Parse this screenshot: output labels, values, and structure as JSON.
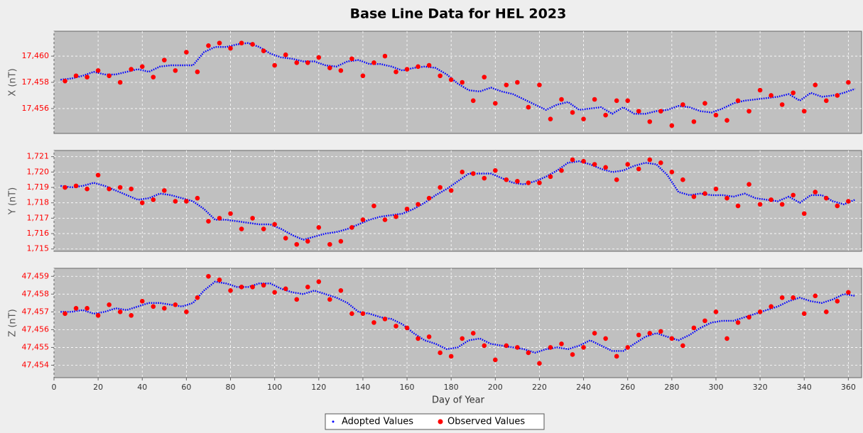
{
  "chart_data": {
    "type": "scatter",
    "title": "Base Line Data for HEL 2023",
    "xlabel": "Day of Year",
    "xlim": [
      0,
      366
    ],
    "xticks": [
      0,
      20,
      40,
      60,
      80,
      100,
      120,
      140,
      160,
      180,
      200,
      220,
      240,
      260,
      280,
      300,
      320,
      340,
      360
    ],
    "grid": true,
    "legend": "bottom",
    "tick_color": "#ff0000",
    "series": [
      {
        "name": "Adopted Values",
        "color": "#0000ff"
      },
      {
        "name": "Observed Values",
        "color": "#ff0000"
      }
    ],
    "x_adopted": [
      3,
      8,
      13,
      18,
      23,
      28,
      33,
      38,
      43,
      48,
      53,
      58,
      63,
      68,
      73,
      78,
      83,
      88,
      93,
      98,
      103,
      108,
      113,
      118,
      123,
      128,
      133,
      138,
      143,
      148,
      153,
      158,
      163,
      168,
      173,
      178,
      183,
      188,
      193,
      198,
      203,
      208,
      213,
      218,
      223,
      228,
      233,
      238,
      243,
      248,
      253,
      258,
      263,
      268,
      273,
      278,
      283,
      288,
      293,
      298,
      303,
      308,
      313,
      318,
      323,
      328,
      333,
      338,
      343,
      348,
      353,
      358,
      363
    ],
    "x_observed": [
      5,
      10,
      15,
      20,
      25,
      30,
      35,
      40,
      45,
      50,
      55,
      60,
      65,
      70,
      75,
      80,
      85,
      90,
      95,
      100,
      105,
      110,
      115,
      120,
      125,
      130,
      135,
      140,
      145,
      150,
      155,
      160,
      165,
      170,
      175,
      180,
      185,
      190,
      195,
      200,
      205,
      210,
      215,
      220,
      225,
      230,
      235,
      240,
      245,
      250,
      255,
      260,
      265,
      270,
      275,
      280,
      285,
      290,
      295,
      300,
      305,
      310,
      315,
      320,
      325,
      330,
      335,
      340,
      345,
      350,
      355,
      360
    ],
    "panels": [
      {
        "ylabel": "X (nT)",
        "ylim": [
          17454.1,
          17461.9
        ],
        "yticks": [
          {
            "value": 17456,
            "label": "17,456"
          },
          {
            "value": 17458,
            "label": "17,458"
          },
          {
            "value": 17460,
            "label": "17,460"
          }
        ],
        "adopted": [
          17458.2,
          17458.3,
          17458.5,
          17458.8,
          17458.6,
          17458.6,
          17458.8,
          17459.0,
          17458.8,
          17459.2,
          17459.3,
          17459.3,
          17459.3,
          17460.3,
          17460.7,
          17460.7,
          17460.9,
          17461.0,
          17460.7,
          17460.2,
          17459.9,
          17459.8,
          17459.6,
          17459.6,
          17459.3,
          17459.2,
          17459.6,
          17459.7,
          17459.4,
          17459.4,
          17459.2,
          17458.9,
          17459.1,
          17459.2,
          17459.1,
          17458.6,
          17457.9,
          17457.4,
          17457.3,
          17457.6,
          17457.3,
          17457.1,
          17456.7,
          17456.3,
          17455.9,
          17456.3,
          17456.5,
          17455.9,
          17456.0,
          17456.1,
          17455.6,
          17456.1,
          17455.6,
          17455.6,
          17455.8,
          17455.9,
          17456.2,
          17456.1,
          17455.8,
          17455.7,
          17456.0,
          17456.4,
          17456.6,
          17456.7,
          17456.8,
          17456.9,
          17457.1,
          17456.6,
          17457.2,
          17456.9,
          17457.0,
          17457.2,
          17457.5
        ],
        "observed": [
          17458.1,
          17458.5,
          17458.4,
          17458.9,
          17458.5,
          17458.0,
          17459.0,
          17459.2,
          17458.4,
          17459.7,
          17458.9,
          17460.3,
          17458.8,
          17460.8,
          17461.0,
          17460.6,
          17461.0,
          17460.9,
          17460.4,
          17459.3,
          17460.1,
          17459.5,
          17459.5,
          17459.9,
          17459.1,
          17458.9,
          17459.8,
          17458.5,
          17459.5,
          17460.0,
          17458.8,
          17459.0,
          17459.2,
          17459.3,
          17458.5,
          17458.2,
          17458.0,
          17456.6,
          17458.4,
          17456.4,
          17457.8,
          17458.0,
          17456.1,
          17457.8,
          17455.2,
          17456.7,
          17455.7,
          17455.2,
          17456.7,
          17455.5,
          17456.6,
          17456.6,
          17455.8,
          17455.0,
          17455.8,
          17454.7,
          17456.3,
          17455.0,
          17456.4,
          17455.5,
          17455.1,
          17456.6,
          17455.8,
          17457.4,
          17457.0,
          17456.3,
          17457.2,
          17455.8,
          17457.8,
          17456.6,
          17457.0,
          17458.0
        ]
      },
      {
        "ylabel": "Y (nT)",
        "ylim": [
          1714.85,
          1721.4
        ],
        "yticks": [
          {
            "value": 1715,
            "label": "1,715"
          },
          {
            "value": 1716,
            "label": "1,716"
          },
          {
            "value": 1717,
            "label": "1,717"
          },
          {
            "value": 1718,
            "label": "1,718"
          },
          {
            "value": 1719,
            "label": "1,719"
          },
          {
            "value": 1720,
            "label": "1,720"
          },
          {
            "value": 1721,
            "label": "1,721"
          }
        ],
        "adopted": [
          1719.1,
          1719.0,
          1719.1,
          1719.3,
          1719.1,
          1718.8,
          1718.5,
          1718.2,
          1718.3,
          1718.6,
          1718.5,
          1718.3,
          1718.1,
          1717.6,
          1716.9,
          1716.9,
          1716.8,
          1716.7,
          1716.6,
          1716.6,
          1716.3,
          1715.9,
          1715.6,
          1715.8,
          1716.0,
          1716.1,
          1716.3,
          1716.6,
          1716.9,
          1717.1,
          1717.2,
          1717.3,
          1717.6,
          1718.0,
          1718.5,
          1718.9,
          1719.4,
          1719.9,
          1719.9,
          1719.9,
          1719.6,
          1719.3,
          1719.2,
          1719.4,
          1719.7,
          1720.1,
          1720.6,
          1720.7,
          1720.5,
          1720.2,
          1720.0,
          1720.1,
          1720.4,
          1720.6,
          1720.5,
          1719.8,
          1718.7,
          1718.5,
          1718.6,
          1718.5,
          1718.5,
          1718.4,
          1718.6,
          1718.3,
          1718.2,
          1718.1,
          1718.4,
          1718.0,
          1718.5,
          1718.5,
          1718.1,
          1717.9,
          1718.2
        ],
        "observed": [
          1719.0,
          1719.1,
          1718.9,
          1719.8,
          1718.9,
          1719.0,
          1718.9,
          1718.0,
          1718.2,
          1718.8,
          1718.1,
          1718.1,
          1718.3,
          1716.8,
          1717.0,
          1717.3,
          1716.3,
          1717.0,
          1716.3,
          1716.6,
          1715.7,
          1715.3,
          1715.5,
          1716.4,
          1715.3,
          1715.5,
          1716.4,
          1716.9,
          1717.8,
          1716.9,
          1717.1,
          1717.6,
          1717.9,
          1718.3,
          1719.0,
          1718.8,
          1720.0,
          1719.9,
          1719.6,
          1720.1,
          1719.5,
          1719.4,
          1719.3,
          1719.3,
          1719.7,
          1720.1,
          1720.8,
          1720.7,
          1720.5,
          1720.3,
          1719.5,
          1720.5,
          1720.2,
          1720.8,
          1720.6,
          1720.0,
          1719.5,
          1718.4,
          1718.6,
          1718.9,
          1718.3,
          1717.8,
          1719.2,
          1717.9,
          1718.2,
          1717.9,
          1718.5,
          1717.3,
          1718.7,
          1718.3,
          1717.8,
          1718.1
        ]
      },
      {
        "ylabel": "Z (nT)",
        "ylim": [
          47453.3,
          47459.45
        ],
        "yticks": [
          {
            "value": 47454,
            "label": "47,454"
          },
          {
            "value": 47455,
            "label": "47,455"
          },
          {
            "value": 47456,
            "label": "47,456"
          },
          {
            "value": 47457,
            "label": "47,457"
          },
          {
            "value": 47458,
            "label": "47,458"
          },
          {
            "value": 47459,
            "label": "47,459"
          }
        ],
        "adopted": [
          47457.0,
          47457.0,
          47457.1,
          47456.9,
          47457.0,
          47457.2,
          47457.1,
          47457.3,
          47457.5,
          47457.5,
          47457.4,
          47457.3,
          47457.5,
          47458.2,
          47458.7,
          47458.6,
          47458.4,
          47458.4,
          47458.6,
          47458.6,
          47458.3,
          47458.1,
          47458.0,
          47458.2,
          47458.0,
          47457.8,
          47457.5,
          47457.0,
          47456.9,
          47456.7,
          47456.6,
          47456.3,
          47455.8,
          47455.4,
          47455.2,
          47454.9,
          47455.0,
          47455.4,
          47455.5,
          47455.2,
          47455.1,
          47455.0,
          47454.9,
          47454.7,
          47454.9,
          47455.0,
          47454.9,
          47455.1,
          47455.4,
          47455.1,
          47454.8,
          47454.8,
          47455.2,
          47455.6,
          47455.8,
          47455.6,
          47455.4,
          47455.7,
          47456.1,
          47456.4,
          47456.5,
          47456.5,
          47456.7,
          47456.9,
          47457.1,
          47457.3,
          47457.6,
          47457.8,
          47457.6,
          47457.5,
          47457.7,
          47458.0,
          47457.9
        ],
        "observed": [
          47456.9,
          47457.2,
          47457.2,
          47456.8,
          47457.4,
          47457.0,
          47456.8,
          47457.6,
          47457.3,
          47457.2,
          47457.4,
          47457.0,
          47457.8,
          47459.0,
          47458.8,
          47458.2,
          47458.4,
          47458.4,
          47458.5,
          47458.1,
          47458.3,
          47457.7,
          47458.4,
          47458.7,
          47457.7,
          47458.2,
          47456.9,
          47456.9,
          47456.4,
          47456.6,
          47456.2,
          47456.1,
          47455.5,
          47455.6,
          47454.7,
          47454.5,
          47455.5,
          47455.8,
          47455.1,
          47454.3,
          47455.1,
          47455.0,
          47454.7,
          47454.1,
          47455.0,
          47455.2,
          47454.6,
          47455.0,
          47455.8,
          47455.5,
          47454.5,
          47455.0,
          47455.7,
          47455.8,
          47455.9,
          47455.5,
          47455.1,
          47456.1,
          47456.5,
          47457.0,
          47455.5,
          47456.4,
          47456.7,
          47457.0,
          47457.3,
          47457.8,
          47457.8,
          47456.9,
          47457.9,
          47457.0,
          47457.6,
          47458.1
        ]
      }
    ]
  }
}
